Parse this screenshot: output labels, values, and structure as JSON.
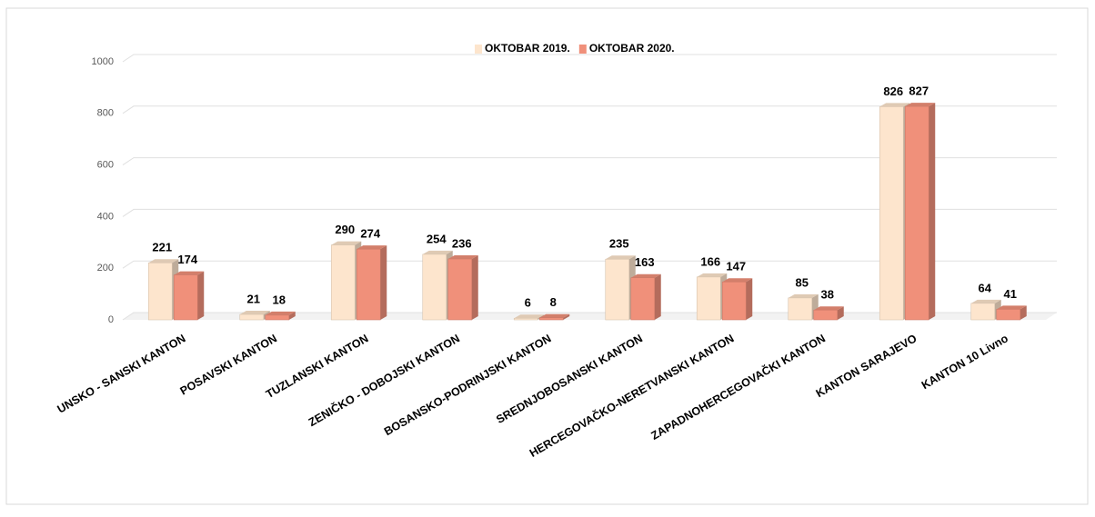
{
  "chart_data": {
    "type": "bar",
    "categories": [
      "UNSKO - SANSKI KANTON",
      "POSAVSKI KANTON",
      "TUZLANSKI KANTON",
      "ZENIČKO - DOBOJSKI KANTON",
      "BOSANSKO-PODRINJSKI KANTON",
      "SREDNJOBOSANSKI KANTON",
      "HERCEGOVAČKO-NERETVANSKI KANTON",
      "ZAPADNOHERCEGOVAČKI KANTON",
      "KANTON SARAJEVO",
      "KANTON 10 Livno"
    ],
    "series": [
      {
        "name": "OKTOBAR 2019.",
        "color": "#fde5cd",
        "values": [
          221,
          21,
          290,
          254,
          6,
          235,
          166,
          85,
          826,
          64
        ]
      },
      {
        "name": "OKTOBAR 2020.",
        "color": "#f0907a",
        "values": [
          174,
          18,
          274,
          236,
          8,
          163,
          147,
          38,
          827,
          41
        ]
      }
    ],
    "ylim": [
      0,
      1000
    ],
    "yticks": [
      0,
      200,
      400,
      600,
      800,
      1000
    ],
    "grid": true
  }
}
